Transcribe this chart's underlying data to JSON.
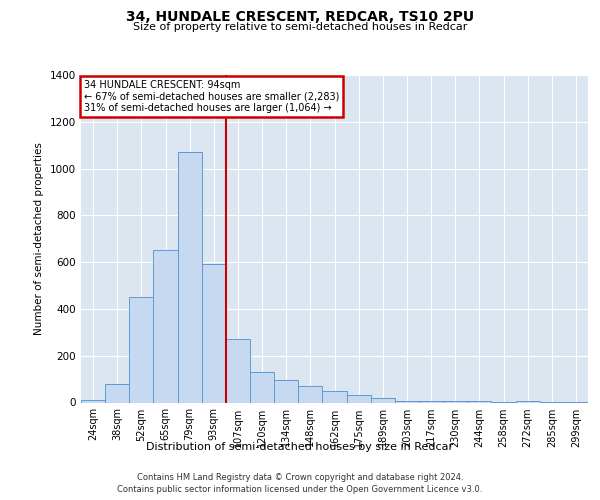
{
  "title": "34, HUNDALE CRESCENT, REDCAR, TS10 2PU",
  "subtitle": "Size of property relative to semi-detached houses in Redcar",
  "xlabel": "Distribution of semi-detached houses by size in Redcar",
  "ylabel": "Number of semi-detached properties",
  "footnote1": "Contains HM Land Registry data © Crown copyright and database right 2024.",
  "footnote2": "Contains public sector information licensed under the Open Government Licence v3.0.",
  "annotation_title": "34 HUNDALE CRESCENT: 94sqm",
  "annotation_line1": "← 67% of semi-detached houses are smaller (2,283)",
  "annotation_line2": "31% of semi-detached houses are larger (1,064) →",
  "bar_categories": [
    "24sqm",
    "38sqm",
    "52sqm",
    "65sqm",
    "79sqm",
    "93sqm",
    "107sqm",
    "120sqm",
    "134sqm",
    "148sqm",
    "162sqm",
    "175sqm",
    "189sqm",
    "203sqm",
    "217sqm",
    "230sqm",
    "244sqm",
    "258sqm",
    "272sqm",
    "285sqm",
    "299sqm"
  ],
  "bar_values": [
    10,
    80,
    450,
    650,
    1070,
    590,
    270,
    130,
    95,
    70,
    50,
    30,
    20,
    8,
    8,
    8,
    5,
    2,
    5,
    2,
    2
  ],
  "bar_color": "#c6d9f0",
  "bar_edge_color": "#5b9bd5",
  "vline_color": "#cc0000",
  "vline_position": 5.5,
  "annotation_box_edgecolor": "#cc0000",
  "ylim_max": 1400,
  "yticks": [
    0,
    200,
    400,
    600,
    800,
    1000,
    1200,
    1400
  ],
  "plot_bg_color": "#dce6f1",
  "grid_color": "#ffffff"
}
